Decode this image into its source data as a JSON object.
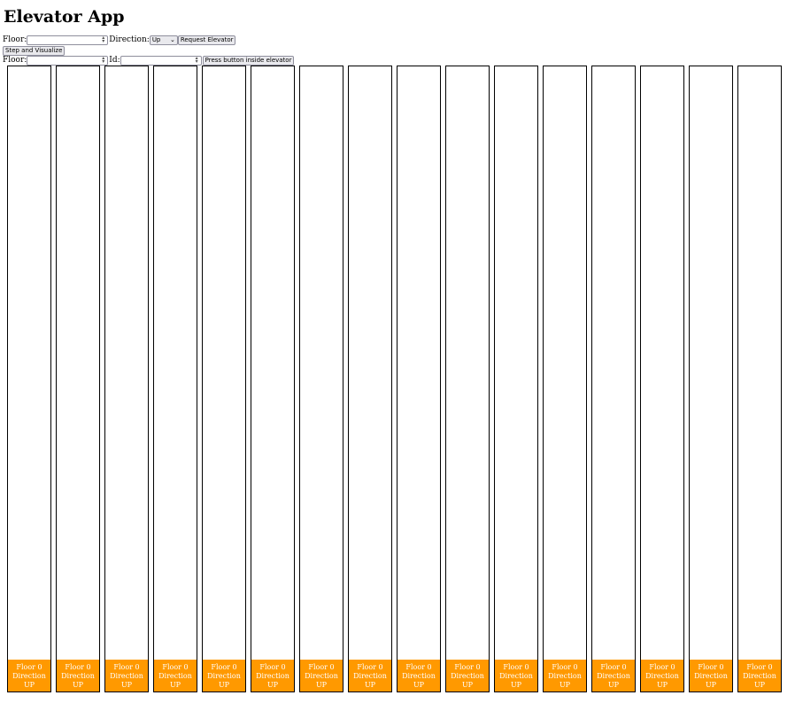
{
  "app": {
    "title": "Elevator App"
  },
  "request": {
    "floor_label": "Floor:",
    "floor_value": "",
    "direction_label": "Direction:",
    "direction_selected": "Up",
    "submit_label": "Request Elevator"
  },
  "step": {
    "label": "Step and Visualize"
  },
  "inside": {
    "floor_label": "Floor:",
    "floor_value": "",
    "id_label": "Id:",
    "id_value": "",
    "submit_label": "Press button inside elevator"
  },
  "elevators": [
    {
      "floor": "Floor 0",
      "direction_label": "Direction",
      "direction": "UP"
    },
    {
      "floor": "Floor 0",
      "direction_label": "Direction",
      "direction": "UP"
    },
    {
      "floor": "Floor 0",
      "direction_label": "Direction",
      "direction": "UP"
    },
    {
      "floor": "Floor 0",
      "direction_label": "Direction",
      "direction": "UP"
    },
    {
      "floor": "Floor 0",
      "direction_label": "Direction",
      "direction": "UP"
    },
    {
      "floor": "Floor 0",
      "direction_label": "Direction",
      "direction": "UP"
    },
    {
      "floor": "Floor 0",
      "direction_label": "Direction",
      "direction": "UP"
    },
    {
      "floor": "Floor 0",
      "direction_label": "Direction",
      "direction": "UP"
    },
    {
      "floor": "Floor 0",
      "direction_label": "Direction",
      "direction": "UP"
    },
    {
      "floor": "Floor 0",
      "direction_label": "Direction",
      "direction": "UP"
    },
    {
      "floor": "Floor 0",
      "direction_label": "Direction",
      "direction": "UP"
    },
    {
      "floor": "Floor 0",
      "direction_label": "Direction",
      "direction": "UP"
    },
    {
      "floor": "Floor 0",
      "direction_label": "Direction",
      "direction": "UP"
    },
    {
      "floor": "Floor 0",
      "direction_label": "Direction",
      "direction": "UP"
    },
    {
      "floor": "Floor 0",
      "direction_label": "Direction",
      "direction": "UP"
    },
    {
      "floor": "Floor 0",
      "direction_label": "Direction",
      "direction": "UP"
    }
  ],
  "colors": {
    "car": "#ff9900",
    "car_text": "#ffffff",
    "shaft_border": "#000000"
  },
  "icons": {
    "spinner": "spinner-icon",
    "chevron": "chevron-down-icon"
  }
}
